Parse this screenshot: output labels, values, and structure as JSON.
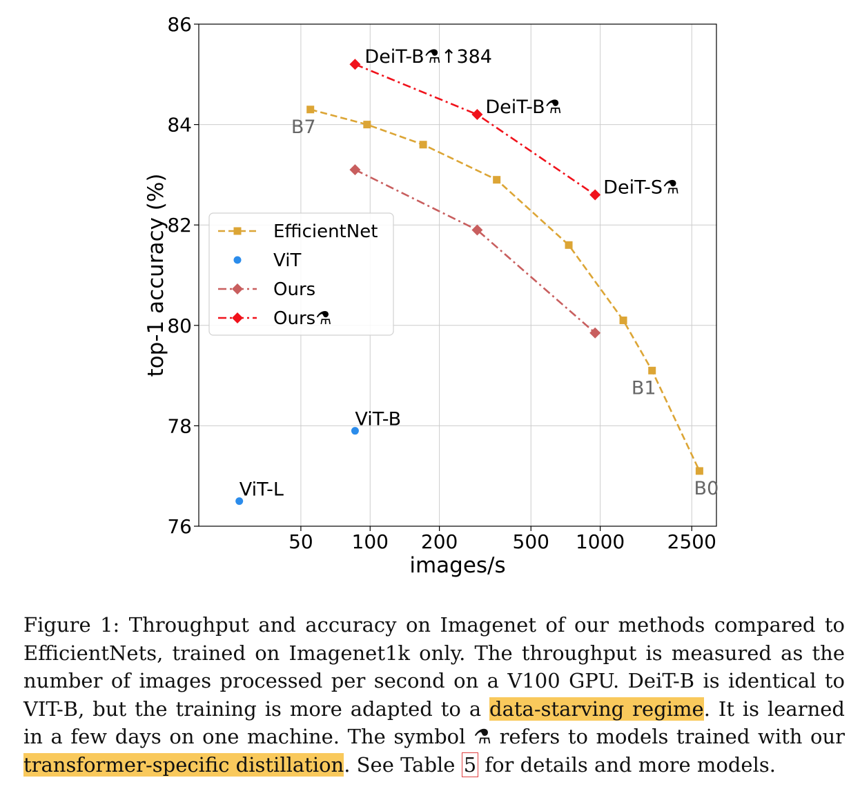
{
  "chart_data": {
    "type": "line",
    "xlabel": "images/s",
    "ylabel": "top-1 accuracy (%)",
    "xscale": "log",
    "xlim": [
      18,
      3200
    ],
    "ylim": [
      76,
      86
    ],
    "xticks": [
      {
        "value": 50,
        "label": "50"
      },
      {
        "value": 100,
        "label": "100"
      },
      {
        "value": 200,
        "label": "200"
      },
      {
        "value": 500,
        "label": "500"
      },
      {
        "value": 1000,
        "label": "1000"
      },
      {
        "value": 2500,
        "label": "2500"
      }
    ],
    "yticks": [
      {
        "value": 76,
        "label": "76"
      },
      {
        "value": 78,
        "label": "78"
      },
      {
        "value": 80,
        "label": "80"
      },
      {
        "value": 82,
        "label": "82"
      },
      {
        "value": 84,
        "label": "84"
      },
      {
        "value": 86,
        "label": "86"
      }
    ],
    "grid": true,
    "legend_position": "center-left",
    "series": [
      {
        "name": "EfficientNet",
        "color": "#dca535",
        "marker": "square",
        "line": "dashed",
        "x": [
          55,
          97,
          170,
          355,
          730,
          1260,
          1680,
          2700
        ],
        "y": [
          84.3,
          84.0,
          83.6,
          82.9,
          81.6,
          80.1,
          79.1,
          77.1
        ]
      },
      {
        "name": "ViT",
        "color": "#2b8ceb",
        "marker": "circle",
        "line": "none",
        "x": [
          27,
          86
        ],
        "y": [
          76.5,
          77.9
        ]
      },
      {
        "name": "Ours",
        "color": "#c85e5e",
        "marker": "diamond",
        "line": "dashdot",
        "x": [
          86,
          292,
          950
        ],
        "y": [
          83.1,
          81.9,
          79.85
        ]
      },
      {
        "name": "Ours⚗",
        "color": "#f0121b",
        "marker": "diamond",
        "line": "dashdot",
        "x": [
          86,
          292,
          950
        ],
        "y": [
          85.2,
          84.2,
          82.6
        ]
      }
    ],
    "annotations": [
      {
        "text": "DeiT-B⚗↑384",
        "x": 86,
        "y": 85.2,
        "color": "#000000",
        "anchor": "start",
        "dx": 14,
        "dy": -2
      },
      {
        "text": "DeiT-B⚗",
        "x": 292,
        "y": 84.2,
        "color": "#000000",
        "anchor": "start",
        "dx": 12,
        "dy": -2
      },
      {
        "text": "DeiT-S⚗",
        "x": 950,
        "y": 82.6,
        "color": "#000000",
        "anchor": "start",
        "dx": 12,
        "dy": -2
      },
      {
        "text": "B7",
        "x": 55,
        "y": 84.3,
        "color": "#666666",
        "anchor": "middle",
        "dx": -10,
        "dy": 34
      },
      {
        "text": "B1",
        "x": 1680,
        "y": 79.1,
        "color": "#666666",
        "anchor": "middle",
        "dx": -12,
        "dy": 34
      },
      {
        "text": "B0",
        "x": 2700,
        "y": 77.1,
        "color": "#666666",
        "anchor": "middle",
        "dx": 10,
        "dy": 34
      },
      {
        "text": "ViT-B",
        "x": 86,
        "y": 77.9,
        "color": "#000000",
        "anchor": "start",
        "dx": 0,
        "dy": -8
      },
      {
        "text": "ViT-L",
        "x": 27,
        "y": 76.5,
        "color": "#000000",
        "anchor": "start",
        "dx": 0,
        "dy": -8
      }
    ]
  },
  "caption": {
    "part1": "Figure 1: Throughput and accuracy on Imagenet of our methods compared to EfficientNets, trained on Imagenet1k only. The throughput is measured as the number of images processed per second on a V100 GPU. DeiT-B is identical to VIT-B, but the training is more adapted to a ",
    "highlight1": "data-starving regime",
    "part2": ". It is learned in a few days on one machine. The symbol ⚗ refers to models trained with our ",
    "highlight2": "transformer-specific distillation",
    "part3": ". See Table ",
    "table_ref": "5",
    "part4": " for details and more models."
  }
}
